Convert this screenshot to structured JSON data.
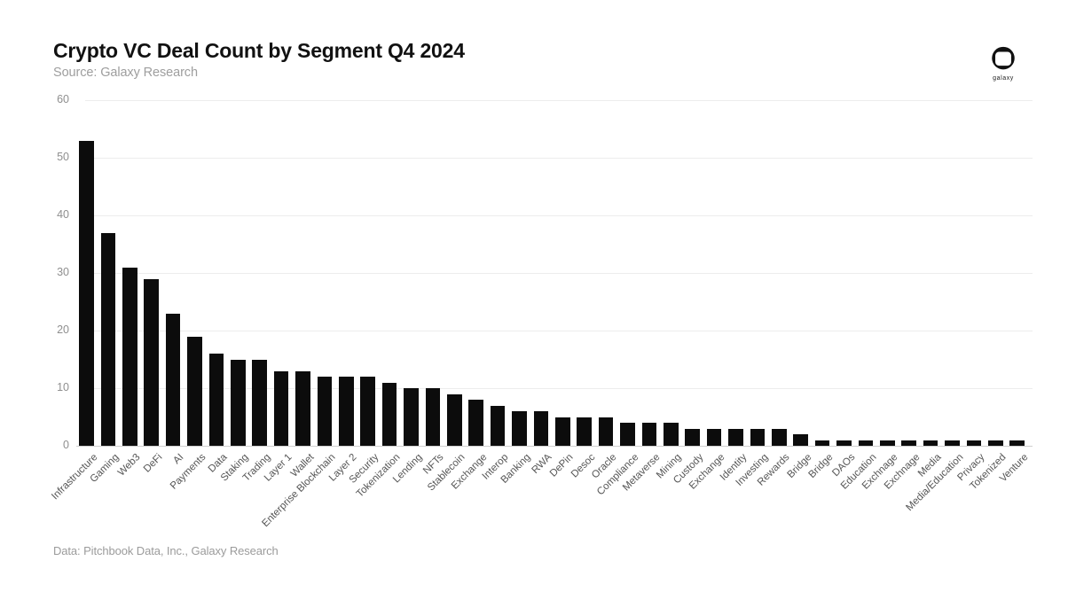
{
  "header": {
    "title": "Crypto VC Deal Count by Segment Q4 2024",
    "subtitle": "Source: Galaxy Research"
  },
  "logo": {
    "brand": "galaxy",
    "icon": "galaxy-helmet-logo"
  },
  "footer": {
    "caption": "Data: Pitchbook Data, Inc., Galaxy Research"
  },
  "colors": {
    "bar": "#0c0c0c",
    "grid": "#ededed",
    "axis_line": "#cfcfcf",
    "y_tick_text": "#8f8f8f",
    "x_label_text": "#555555",
    "muted_text": "#9b9b9b",
    "background": "#ffffff"
  },
  "chart_data": {
    "type": "bar",
    "title": "Crypto VC Deal Count by Segment Q4 2024",
    "xlabel": "",
    "ylabel": "",
    "ylim": [
      0,
      60
    ],
    "yticks": [
      0,
      10,
      20,
      30,
      40,
      50,
      60
    ],
    "grid": true,
    "legend": false,
    "bar_color": "#0c0c0c",
    "categories": [
      "Infrastructure",
      "Gaming",
      "Web3",
      "DeFi",
      "AI",
      "Payments",
      "Data",
      "Staking",
      "Trading",
      "Layer 1",
      "Wallet",
      "Enterprise Blockchain",
      "Layer 2",
      "Security",
      "Tokenization",
      "Lending",
      "NFTs",
      "Stablecoin",
      "Exchange",
      "Interop",
      "Banking",
      "RWA",
      "DePin",
      "Desoc",
      "Oracle",
      "Compliance",
      "Metaverse",
      "Mining",
      "Custody",
      "Exchange",
      "Identity",
      "Investing",
      "Rewards",
      "Bridge",
      "Bridge",
      "DAOs",
      "Education",
      "Exchnage",
      "Exchnage",
      "Media",
      "Media/Education",
      "Privacy",
      "Tokenized",
      "Venture"
    ],
    "values": [
      53,
      37,
      31,
      29,
      23,
      19,
      16,
      15,
      15,
      13,
      13,
      12,
      12,
      12,
      11,
      10,
      10,
      9,
      8,
      7,
      6,
      6,
      5,
      5,
      5,
      4,
      4,
      4,
      3,
      3,
      3,
      3,
      3,
      2,
      1,
      1,
      1,
      1,
      1,
      1,
      1,
      1,
      1,
      1
    ]
  }
}
